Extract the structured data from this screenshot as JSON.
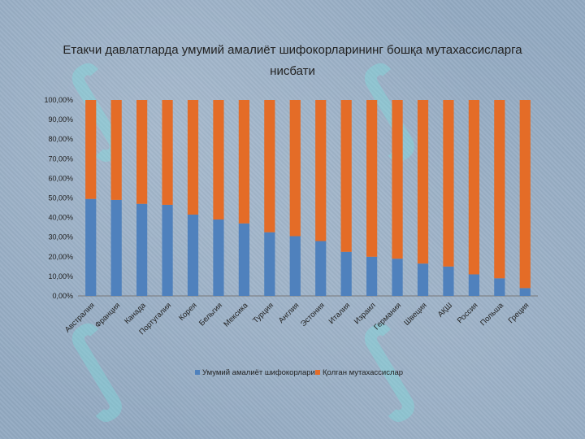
{
  "chart_data": {
    "type": "bar",
    "stacked": "percent",
    "title_line1": "Етакчи давлатларда умумий амалиёт шифокорларининг бошқа мутахассисларга",
    "title_line2": "нисбати",
    "categories": [
      "Австралия",
      "Франция",
      "Канада",
      "Португалия",
      "Корея",
      "Бельгия",
      "Мексика",
      "Турция",
      "Англия",
      "Эстония",
      "Италия",
      "Израил",
      "Германия",
      "Швеция",
      "АҚШ",
      "Россия",
      "Польша",
      "Греция"
    ],
    "series": [
      {
        "name": "Умумий амалиёт шифокорлари",
        "color": "#4f81bd",
        "values": [
          49.5,
          49,
          47,
          46.5,
          41.5,
          39,
          37,
          32.5,
          30.5,
          28,
          22.5,
          20,
          19,
          16.5,
          15,
          11,
          9,
          4
        ]
      },
      {
        "name": "Қолган мутахассислар",
        "color": "#e46c27",
        "values": [
          50.5,
          51,
          53,
          53.5,
          58.5,
          61,
          63,
          67.5,
          69.5,
          72,
          77.5,
          80,
          81,
          83.5,
          85,
          89,
          91,
          96
        ]
      }
    ],
    "y_ticks": [
      "0,00%",
      "10,00%",
      "20,00%",
      "30,00%",
      "40,00%",
      "50,00%",
      "60,00%",
      "70,00%",
      "80,00%",
      "90,00%",
      "100,00%"
    ],
    "ylim": [
      0,
      100
    ],
    "legend_position": "bottom"
  }
}
